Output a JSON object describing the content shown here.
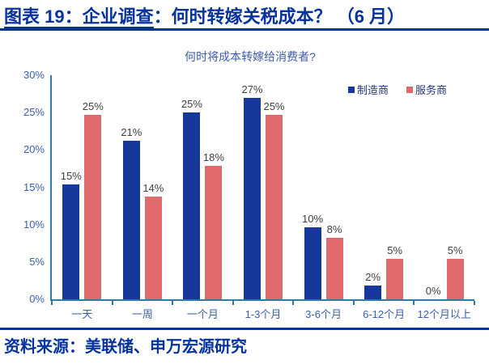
{
  "header": {
    "title_label": "图表 19：企业调查",
    "title_rest": "：何时转嫁关税成本？ （6 月）"
  },
  "footer": {
    "source": "资料来源：美联储、申万宏源研究"
  },
  "colors": {
    "title_blue": "#0632A0",
    "bar_blue": "#16389D",
    "bar_red": "#E06A6B",
    "axis_line": "#2E7CA6",
    "axis_label_blue": "#3A5FAE",
    "data_label_gray": "#404040",
    "legend_text": "#27357D",
    "subtitle_blue": "#3C5BA9"
  },
  "chart_data": {
    "type": "bar",
    "title": "何时将成本转嫁给消费者?",
    "categories": [
      "一天",
      "一周",
      "一个月",
      "1-3个月",
      "3-6个月",
      "6-12个月",
      "12个月以上"
    ],
    "series": [
      {
        "name": "制造商",
        "color": "#16389D",
        "values": [
          15.4,
          21.2,
          25,
          27,
          9.6,
          1.9,
          0
        ],
        "labels": [
          "15%",
          "21%",
          "25%",
          "27%",
          "10%",
          "2%",
          "0%"
        ]
      },
      {
        "name": "服务商",
        "color": "#E06A6B",
        "values": [
          24.7,
          13.8,
          17.9,
          24.7,
          8.2,
          5.4,
          5.4
        ],
        "labels": [
          "25%",
          "14%",
          "18%",
          "25%",
          "8%",
          "5%",
          "5%"
        ]
      }
    ],
    "ylim": [
      0,
      30
    ],
    "y_ticks": [
      "0%",
      "5%",
      "10%",
      "15%",
      "20%",
      "25%",
      "30%"
    ],
    "grid": false,
    "legend_position": "top-right"
  }
}
